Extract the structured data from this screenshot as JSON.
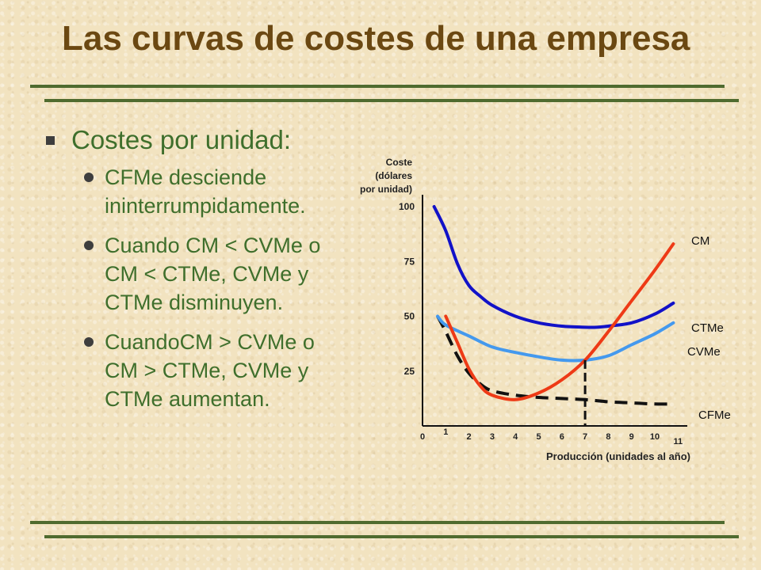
{
  "title": "Las curvas de costes de una empresa",
  "bullets": {
    "main": "Costes por unidad:",
    "sub": [
      "CFMe desciende ininterrumpidamente.",
      "Cuando CM < CVMe o CM < CTMe, CVMe y CTMe disminuyen.",
      "CuandoCM > CVMe o CM > CTMe, CVMe y CTMe aumentan."
    ]
  },
  "colors": {
    "title": "#6b4812",
    "text": "#3f6f2c",
    "rule": "#4f6b2f",
    "cm": "#ee3a16",
    "ctme": "#1212c8",
    "cvme": "#4499ee",
    "cfme": "#111111"
  },
  "chart_data": {
    "type": "line",
    "ylabel": "Coste (dólares por unidad)",
    "ylabel_lines": [
      "Coste",
      "(dólares",
      "por unidad)"
    ],
    "xlabel": "Producción (unidades al año)",
    "xlim": [
      0,
      11
    ],
    "ylim": [
      0,
      100
    ],
    "x_ticks": [
      "0",
      "1",
      "2",
      "3",
      "4",
      "5",
      "6",
      "7",
      "8",
      "9",
      "10",
      "11"
    ],
    "y_ticks": [
      "100",
      "75",
      "50",
      "25"
    ],
    "y_tick_values": [
      100,
      75,
      50,
      25
    ],
    "marker_x": 7,
    "series": [
      {
        "name": "CM",
        "color": "#ee3a16",
        "points": [
          [
            1,
            50
          ],
          [
            1.5,
            38
          ],
          [
            2,
            26
          ],
          [
            2.5,
            18
          ],
          [
            3,
            14
          ],
          [
            4,
            12
          ],
          [
            5,
            15
          ],
          [
            6,
            21
          ],
          [
            7,
            30
          ],
          [
            8,
            43
          ],
          [
            9,
            57
          ],
          [
            10,
            71
          ],
          [
            10.8,
            83
          ]
        ]
      },
      {
        "name": "CTMe",
        "color": "#1212c8",
        "points": [
          [
            0.5,
            100
          ],
          [
            1,
            89
          ],
          [
            1.5,
            74
          ],
          [
            2,
            64
          ],
          [
            2.5,
            59
          ],
          [
            3,
            55
          ],
          [
            4,
            50
          ],
          [
            5,
            47
          ],
          [
            6,
            45.5
          ],
          [
            7,
            45
          ],
          [
            7.5,
            45
          ],
          [
            8,
            45.5
          ],
          [
            9,
            47
          ],
          [
            10,
            51
          ],
          [
            10.8,
            56
          ]
        ]
      },
      {
        "name": "CVMe",
        "color": "#4499ee",
        "points": [
          [
            0.65,
            50
          ],
          [
            1,
            46
          ],
          [
            2,
            41
          ],
          [
            3,
            36
          ],
          [
            4,
            33.5
          ],
          [
            5,
            31.5
          ],
          [
            6,
            30
          ],
          [
            7,
            30
          ],
          [
            8,
            32
          ],
          [
            9,
            37
          ],
          [
            10,
            42
          ],
          [
            10.8,
            47
          ]
        ]
      },
      {
        "name": "CFMe",
        "color": "#111111",
        "dashed": true,
        "points": [
          [
            0.65,
            50
          ],
          [
            1,
            43
          ],
          [
            1.5,
            32
          ],
          [
            2,
            24
          ],
          [
            2.5,
            19
          ],
          [
            3,
            16
          ],
          [
            4,
            14
          ],
          [
            5,
            13
          ],
          [
            6,
            12.5
          ],
          [
            7,
            12
          ],
          [
            8,
            11
          ],
          [
            9,
            10.5
          ],
          [
            10,
            10
          ],
          [
            10.8,
            10
          ]
        ]
      }
    ]
  }
}
